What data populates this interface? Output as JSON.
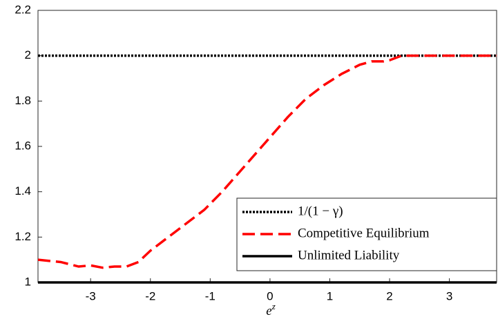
{
  "chart_data": {
    "type": "line",
    "x_label": "e",
    "x_label_superscript": "z",
    "xlim": [
      -3.88,
      3.79
    ],
    "xticks": [
      -3,
      -2,
      -1,
      0,
      1,
      2,
      3
    ],
    "ylim": [
      1,
      2.2
    ],
    "yticks": [
      1,
      1.2,
      1.4,
      1.6,
      1.8,
      2,
      2.2
    ],
    "legend": "lower right",
    "series": [
      {
        "name": "1/(1 − γ)",
        "color": "#000000",
        "dash": "dotted",
        "x": [
          -3.88,
          3.79
        ],
        "values": [
          2,
          2
        ]
      },
      {
        "name": "Competitive Equilibrium",
        "color": "#ff0000",
        "dash": "dashed",
        "x": [
          -3.88,
          -3.5,
          -3.2,
          -3.0,
          -2.8,
          -2.6,
          -2.4,
          -2.2,
          -2.0,
          -1.7,
          -1.4,
          -1.1,
          -0.8,
          -0.5,
          -0.2,
          0,
          0.3,
          0.6,
          0.9,
          1.2,
          1.5,
          1.7,
          1.9,
          2.0,
          2.2,
          3.79
        ],
        "values": [
          1.1,
          1.09,
          1.07,
          1.075,
          1.065,
          1.07,
          1.07,
          1.09,
          1.14,
          1.2,
          1.26,
          1.32,
          1.4,
          1.49,
          1.58,
          1.64,
          1.73,
          1.81,
          1.87,
          1.92,
          1.96,
          1.975,
          1.975,
          1.98,
          2.0,
          2.0
        ]
      },
      {
        "name": "Unlimited Liability",
        "color": "#000000",
        "dash": "solid",
        "x": [
          -3.88,
          3.79
        ],
        "values": [
          1,
          1
        ]
      }
    ]
  }
}
